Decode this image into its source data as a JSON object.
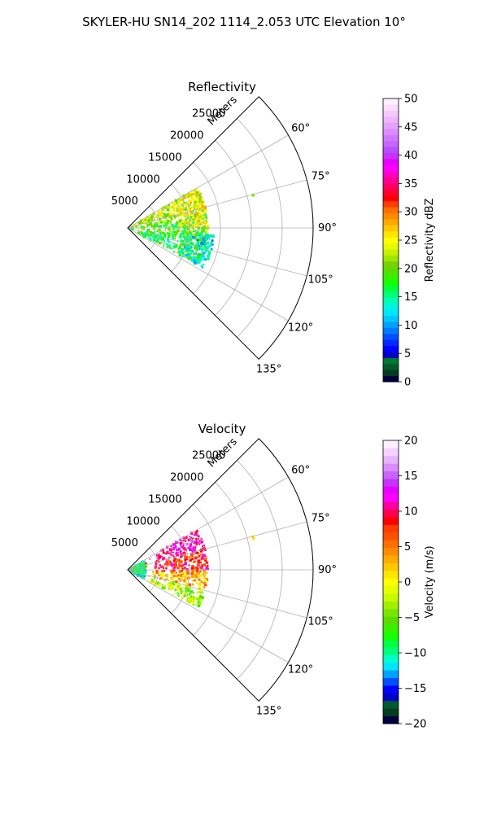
{
  "suptitle": "SKYLER-HU  SN14_202  1114_2.053 UTC Elevation 10°",
  "colors": {
    "reflectivity": [
      "#00003c",
      "#003c1e",
      "#005a2d",
      "#00782d",
      "#0000c8",
      "#0000ff",
      "#0028ff",
      "#0050ff",
      "#0078ff",
      "#00a0ff",
      "#00c8ff",
      "#00e6ff",
      "#00f5dc",
      "#00ffb4",
      "#00ff78",
      "#00ff3c",
      "#14ff00",
      "#3cee00",
      "#5adc00",
      "#78d200",
      "#a0e600",
      "#c8f000",
      "#e6fa00",
      "#ffff00",
      "#ffe600",
      "#ffc800",
      "#ffaa00",
      "#ff8c00",
      "#ff6e00",
      "#ff3c00",
      "#ff0000",
      "#ff0032",
      "#ff0064",
      "#ff0096",
      "#ff00c8",
      "#ff00ff",
      "#e600ff",
      "#c832ff",
      "#b450ff",
      "#c864ff",
      "#d278ff",
      "#dc8cff",
      "#e6a0ff",
      "#f0b4ff",
      "#f5c8ff",
      "#fadcff",
      "#fff0ff"
    ],
    "velocity": [
      "#00003c",
      "#003c1e",
      "#005a2d",
      "#0000c8",
      "#0000ff",
      "#0050ff",
      "#00a0ff",
      "#00e6ff",
      "#00ffc8",
      "#00ff78",
      "#00ff3c",
      "#14ff00",
      "#3cee00",
      "#5adc00",
      "#78e600",
      "#a0f000",
      "#c8fa00",
      "#e6ff00",
      "#ffff00",
      "#ffe600",
      "#ffc800",
      "#ffaa00",
      "#ff8c00",
      "#ff6e00",
      "#ff5000",
      "#ff3c00",
      "#ff0000",
      "#ff0050",
      "#ff00a0",
      "#ff00ff",
      "#e600ff",
      "#c832ff",
      "#c864ff",
      "#dc8cff",
      "#e6b4ff",
      "#f5d2ff",
      "#fff0ff"
    ]
  },
  "chart_data": [
    {
      "type": "heatmap",
      "title": "Reflectivity",
      "radial_label": "Meters",
      "radial_ticks": [
        "5000",
        "10000",
        "15000",
        "20000",
        "25000"
      ],
      "angle_ticks": [
        "60°",
        "75°",
        "90°",
        "105°",
        "120°",
        "135°"
      ],
      "grid": true,
      "azimuth_range": [
        45,
        135
      ],
      "range_limit": [
        0,
        30000
      ],
      "colorbar": {
        "label": "Reflectivity dBZ",
        "range": [
          0,
          50
        ],
        "ticks": [
          "0",
          "5",
          "10",
          "15",
          "20",
          "25",
          "30",
          "35",
          "40",
          "45",
          "50"
        ]
      },
      "echo_regions": [
        {
          "azimuth": [
            60,
            80
          ],
          "range": [
            0,
            13000
          ],
          "value": 23
        },
        {
          "azimuth": [
            80,
            100
          ],
          "range": [
            0,
            13000
          ],
          "value": 19
        },
        {
          "azimuth": [
            100,
            118
          ],
          "range": [
            0,
            13000
          ],
          "value": 17
        },
        {
          "azimuth": [
            60,
            90
          ],
          "range": [
            8000,
            13000
          ],
          "value": 25
        },
        {
          "azimuth": [
            95,
            118
          ],
          "range": [
            9000,
            14000
          ],
          "value": 13
        },
        {
          "azimuth": [
            75,
            76
          ],
          "range": [
            20500,
            21000
          ],
          "value": 22
        }
      ]
    },
    {
      "type": "heatmap",
      "title": "Velocity",
      "radial_label": "Meters",
      "radial_ticks": [
        "5000",
        "10000",
        "15000",
        "20000",
        "25000"
      ],
      "angle_ticks": [
        "60°",
        "75°",
        "90°",
        "105°",
        "120°",
        "135°"
      ],
      "grid": true,
      "azimuth_range": [
        45,
        135
      ],
      "range_limit": [
        0,
        30000
      ],
      "colorbar": {
        "label": "Velocity (m/s)",
        "range": [
          -20,
          20
        ],
        "ticks": [
          "−20",
          "−15",
          "−10",
          "−5",
          "0",
          "5",
          "10",
          "15",
          "20"
        ]
      },
      "echo_regions": [
        {
          "azimuth": [
            60,
            120
          ],
          "range": [
            0,
            3000
          ],
          "value": -9
        },
        {
          "azimuth": [
            60,
            75
          ],
          "range": [
            3000,
            13000
          ],
          "value": 12
        },
        {
          "azimuth": [
            75,
            92
          ],
          "range": [
            3000,
            13000
          ],
          "value": 8
        },
        {
          "azimuth": [
            92,
            105
          ],
          "range": [
            3000,
            13000
          ],
          "value": 3
        },
        {
          "azimuth": [
            105,
            118
          ],
          "range": [
            3000,
            13000
          ],
          "value": -3
        },
        {
          "azimuth": [
            75,
            76
          ],
          "range": [
            20500,
            21000
          ],
          "value": 1
        }
      ]
    }
  ]
}
